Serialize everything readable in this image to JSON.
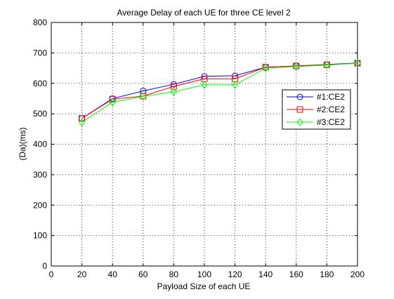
{
  "chart_data": {
    "type": "line",
    "title": "Average Delay of each UE  for three CE level 2",
    "xlabel": "Payload Size of each UE",
    "ylabel": "(Da)(ms)",
    "xlim": [
      0,
      200
    ],
    "ylim": [
      0,
      800
    ],
    "xticks": [
      0,
      20,
      40,
      60,
      80,
      100,
      120,
      140,
      160,
      180,
      200
    ],
    "yticks": [
      0,
      100,
      200,
      300,
      400,
      500,
      600,
      700,
      800
    ],
    "grid": true,
    "legend_position": "right",
    "x": [
      20,
      40,
      60,
      80,
      100,
      120,
      140,
      160,
      180,
      200
    ],
    "series": [
      {
        "name": "#1:CE2",
        "color": "#0000ff",
        "marker": "circle",
        "values": [
          485,
          550,
          575,
          597,
          623,
          625,
          653,
          657,
          662,
          667
        ]
      },
      {
        "name": "#2:CE2",
        "color": "#ff0000",
        "marker": "square",
        "values": [
          485,
          548,
          558,
          590,
          615,
          615,
          653,
          657,
          661,
          666
        ]
      },
      {
        "name": "#3:CE2",
        "color": "#00ff00",
        "marker": "diamond",
        "values": [
          472,
          538,
          557,
          572,
          595,
          595,
          650,
          655,
          660,
          666
        ]
      }
    ]
  }
}
